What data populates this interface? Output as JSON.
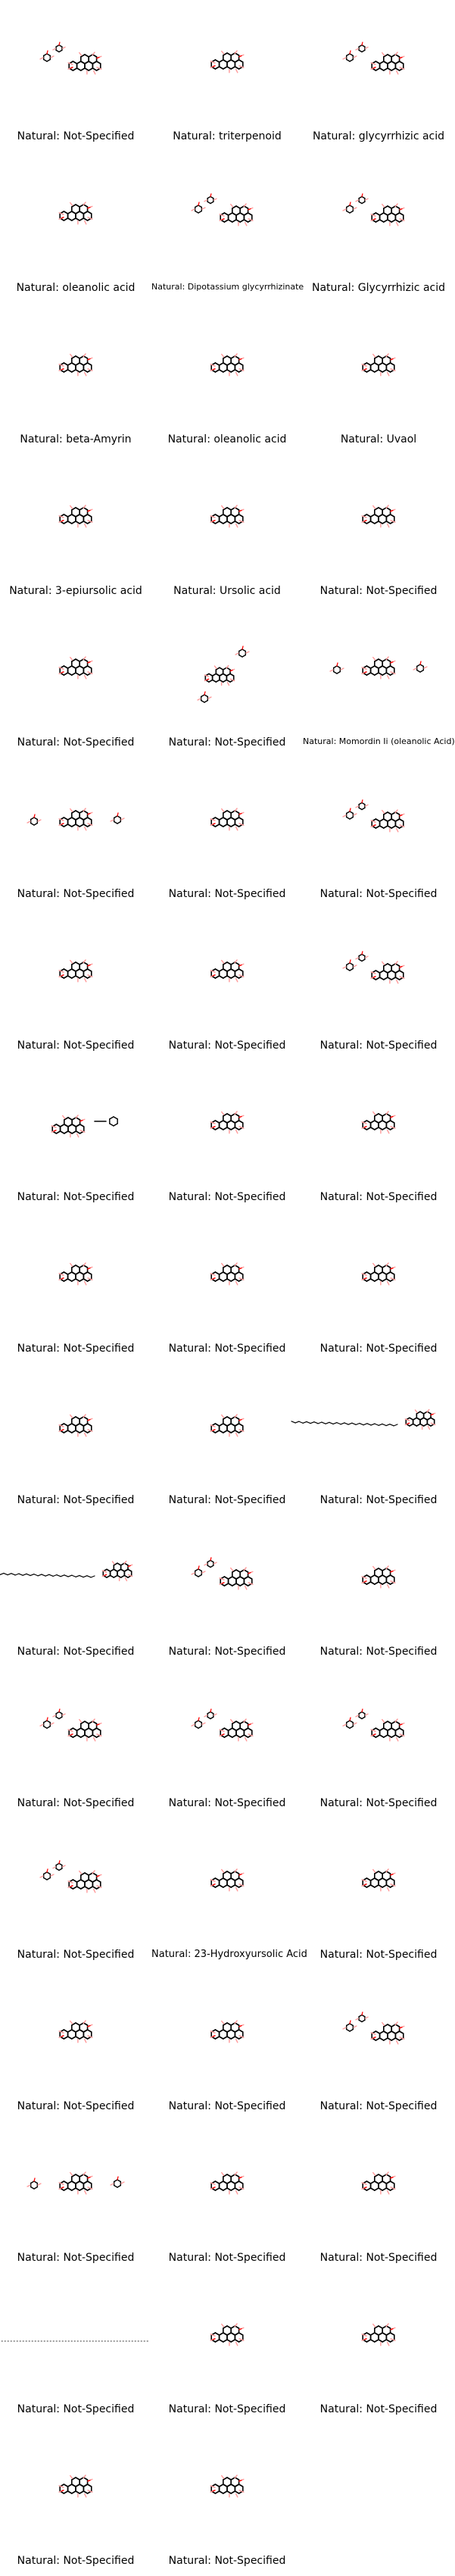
{
  "colors": {
    "bond": "#000000",
    "heteroatom": "#ff0000",
    "hydrogen_highlight": "#ff9999"
  },
  "molecules": [
    {
      "legend": "Natural: Not-Specified",
      "shape": "glycoside"
    },
    {
      "legend": "Natural: triterpenoid",
      "shape": "pentacyclic"
    },
    {
      "legend": "Natural: glycyrrhizic acid",
      "shape": "glycoside"
    },
    {
      "legend": "Natural: oleanolic acid",
      "shape": "pentacyclic"
    },
    {
      "legend": "Natural: Dipotassium glycyrrhizinate",
      "shape": "glycoside"
    },
    {
      "legend": "Natural: Glycyrrhizic acid",
      "shape": "glycoside"
    },
    {
      "legend": "Natural: beta-Amyrin",
      "shape": "pentacyclic"
    },
    {
      "legend": "Natural: oleanolic acid",
      "shape": "pentacyclic"
    },
    {
      "legend": "Natural: Uvaol",
      "shape": "pentacyclic"
    },
    {
      "legend": "Natural: 3-epiursolic acid",
      "shape": "pentacyclic"
    },
    {
      "legend": "Natural: Ursolic acid",
      "shape": "pentacyclic"
    },
    {
      "legend": "Natural: Not-Specified",
      "shape": "pentacyclic"
    },
    {
      "legend": "Natural: Not-Specified",
      "shape": "pentacyclic"
    },
    {
      "legend": "Natural: Not-Specified",
      "shape": "tall"
    },
    {
      "legend": "Natural: Momordin Ii (oleanolic Acid)",
      "shape": "glycoside-wide"
    },
    {
      "legend": "Natural: Not-Specified",
      "shape": "glycoside-wide"
    },
    {
      "legend": "Natural: Not-Specified",
      "shape": "pentacyclic"
    },
    {
      "legend": "Natural: Not-Specified",
      "shape": "glycoside"
    },
    {
      "legend": "Natural: Not-Specified",
      "shape": "pentacyclic"
    },
    {
      "legend": "Natural: Not-Specified",
      "shape": "pentacyclic"
    },
    {
      "legend": "Natural: Not-Specified",
      "shape": "glycoside"
    },
    {
      "legend": "Natural: Not-Specified",
      "shape": "ester"
    },
    {
      "legend": "Natural: Not-Specified",
      "shape": "pentacyclic"
    },
    {
      "legend": "Natural: Not-Specified",
      "shape": "pentacyclic"
    },
    {
      "legend": "Natural: Not-Specified",
      "shape": "pentacyclic"
    },
    {
      "legend": "Natural: Not-Specified",
      "shape": "pentacyclic"
    },
    {
      "legend": "Natural: Not-Specified",
      "shape": "pentacyclic"
    },
    {
      "legend": "Natural: Not-Specified",
      "shape": "pentacyclic"
    },
    {
      "legend": "Natural: Not-Specified",
      "shape": "pentacyclic"
    },
    {
      "legend": "Natural: Not-Specified",
      "shape": "longchain-right"
    },
    {
      "legend": "Natural: Not-Specified",
      "shape": "longchain-left"
    },
    {
      "legend": "Natural: Not-Specified",
      "shape": "glycoside"
    },
    {
      "legend": "Natural: Not-Specified",
      "shape": "pentacyclic"
    },
    {
      "legend": "Natural: Not-Specified",
      "shape": "glycoside"
    },
    {
      "legend": "Natural: Not-Specified",
      "shape": "glycoside"
    },
    {
      "legend": "Natural: Not-Specified",
      "shape": "glycoside"
    },
    {
      "legend": "Natural: Not-Specified",
      "shape": "glycoside"
    },
    {
      "legend": "Natural: 23-Hydroxyursolic Acid",
      "shape": "pentacyclic"
    },
    {
      "legend": "Natural: Not-Specified",
      "shape": "pentacyclic"
    },
    {
      "legend": "Natural: Not-Specified",
      "shape": "pentacyclic"
    },
    {
      "legend": "Natural: Not-Specified",
      "shape": "pentacyclic"
    },
    {
      "legend": "Natural: Not-Specified",
      "shape": "glycoside"
    },
    {
      "legend": "Natural: Not-Specified",
      "shape": "glycoside-wide"
    },
    {
      "legend": "Natural: Not-Specified",
      "shape": "pentacyclic"
    },
    {
      "legend": "Natural: Not-Specified",
      "shape": "pentacyclic"
    },
    {
      "legend": "Natural: Not-Specified",
      "shape": "dotted-chain"
    },
    {
      "legend": "Natural: Not-Specified",
      "shape": "pentacyclic"
    },
    {
      "legend": "Natural: Not-Specified",
      "shape": "pentacyclic"
    },
    {
      "legend": "Natural: Not-Specified",
      "shape": "pentacyclic"
    },
    {
      "legend": "Natural: Not-Specified",
      "shape": "pentacyclic"
    }
  ]
}
